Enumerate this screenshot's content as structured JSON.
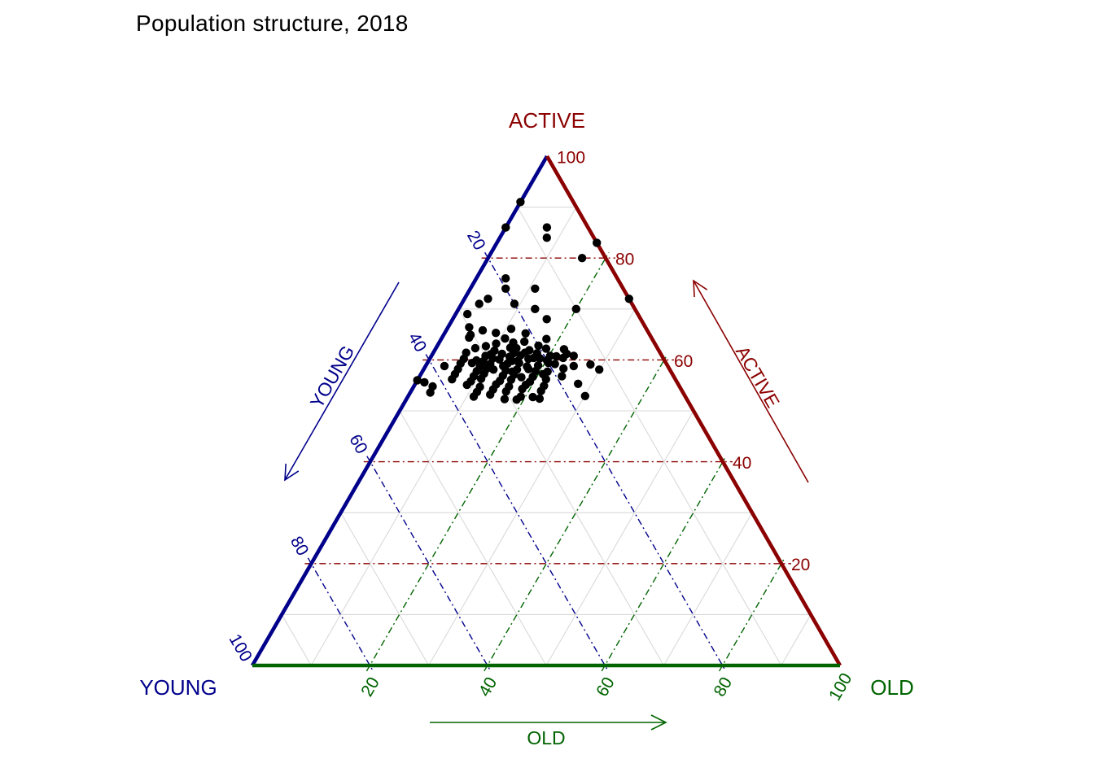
{
  "title": "Population structure, 2018",
  "colors": {
    "young": "#00008B",
    "active": "#8B0000",
    "old": "#006400",
    "points": "#000000",
    "minor_grid": "#D9D9D9",
    "background": "#FFFFFF"
  },
  "axes": {
    "top_label": "ACTIVE",
    "bottom_left_label": "YOUNG",
    "bottom_right_label": "OLD",
    "arrows": {
      "left_label": "YOUNG",
      "right_label": "ACTIVE",
      "bottom_label": "OLD"
    },
    "young_ticks": [
      20,
      40,
      60,
      80,
      100
    ],
    "active_ticks": [
      100,
      80,
      60,
      40,
      20
    ],
    "old_ticks": [
      20,
      40,
      60,
      80,
      100
    ]
  },
  "chart_data": {
    "type": "scatter",
    "subtype": "ternary",
    "title": "Population structure, 2018",
    "components": [
      "YOUNG",
      "ACTIVE",
      "OLD"
    ],
    "axis_range": [
      0,
      100
    ],
    "grid": {
      "major_step": 20,
      "minor_step": 10,
      "major_style": "dash-dot",
      "minor_style": "solid-gray"
    },
    "legend": "none",
    "point_color": "#000000",
    "points": [
      [
        9,
        91,
        0
      ],
      [
        14,
        86,
        0
      ],
      [
        7,
        86,
        7
      ],
      [
        8,
        84,
        8
      ],
      [
        0,
        83,
        17
      ],
      [
        4,
        80,
        16
      ],
      [
        19,
        76,
        5
      ],
      [
        20,
        74,
        6
      ],
      [
        15,
        74,
        11
      ],
      [
        24,
        72,
        4
      ],
      [
        0,
        72,
        28
      ],
      [
        26,
        71,
        3
      ],
      [
        20,
        71,
        9
      ],
      [
        17,
        70,
        13
      ],
      [
        29,
        69,
        2
      ],
      [
        10,
        70,
        20
      ],
      [
        16,
        68,
        16
      ],
      [
        30,
        66.4,
        3.6
      ],
      [
        28,
        65.8,
        6.2
      ],
      [
        26,
        65.3,
        8.7
      ],
      [
        30.5,
        64.9,
        4.6
      ],
      [
        25,
        64.2,
        10.8
      ],
      [
        22,
        63.6,
        14.4
      ],
      [
        27,
        63.2,
        9.8
      ],
      [
        31,
        64.4,
        4.6
      ],
      [
        20,
        62.8,
        17.2
      ],
      [
        24,
        63.4,
        12.6
      ],
      [
        18,
        64.1,
        17.9
      ],
      [
        29,
        62.7,
        8.3
      ],
      [
        21,
        65.2,
        13.8
      ],
      [
        23,
        66.1,
        10.9
      ],
      [
        31,
        62.3,
        6.7
      ],
      [
        28,
        61.8,
        10.2
      ],
      [
        25,
        62.4,
        12.6
      ],
      [
        22,
        61.9,
        16.1
      ],
      [
        19,
        62.2,
        18.8
      ],
      [
        16,
        62.1,
        21.9
      ],
      [
        24,
        62.3,
        13.7
      ],
      [
        33,
        61.4,
        5.6
      ],
      [
        30,
        60.8,
        9.2
      ],
      [
        27,
        61.2,
        11.8
      ],
      [
        24,
        60.9,
        15.1
      ],
      [
        21,
        61.3,
        17.7
      ],
      [
        18,
        60.7,
        21.3
      ],
      [
        16,
        61.2,
        22.8
      ],
      [
        23,
        61.4,
        15.6
      ],
      [
        26,
        60.6,
        13.4
      ],
      [
        29,
        61.1,
        9.9
      ],
      [
        19,
        60.8,
        20.2
      ],
      [
        25,
        61.3,
        13.7
      ],
      [
        34,
        60.2,
        5.8
      ],
      [
        31,
        59.7,
        9.3
      ],
      [
        29,
        60.3,
        10.7
      ],
      [
        26,
        59.8,
        14.2
      ],
      [
        23,
        60.2,
        16.8
      ],
      [
        20,
        59.9,
        20.1
      ],
      [
        17,
        60.4,
        22.6
      ],
      [
        15,
        60.8,
        24.2
      ],
      [
        35,
        59.3,
        5.7
      ],
      [
        32,
        58.7,
        9.3
      ],
      [
        30,
        59.2,
        10.8
      ],
      [
        28,
        58.8,
        13.2
      ],
      [
        25,
        59.4,
        15.6
      ],
      [
        22,
        58.9,
        19.1
      ],
      [
        19,
        59.2,
        21.8
      ],
      [
        16,
        58.8,
        25.2
      ],
      [
        13,
        59.1,
        27.9
      ],
      [
        27,
        59.3,
        13.7
      ],
      [
        24,
        58.7,
        17.3
      ],
      [
        20,
        59.4,
        20.6
      ],
      [
        38,
        58.8,
        3.2
      ],
      [
        36,
        58.2,
        5.8
      ],
      [
        33,
        57.8,
        9.2
      ],
      [
        31,
        58.3,
        10.7
      ],
      [
        28,
        57.9,
        14.1
      ],
      [
        26,
        58.1,
        15.9
      ],
      [
        24,
        58.2,
        17.8
      ],
      [
        21,
        57.7,
        21.3
      ],
      [
        18,
        58.3,
        23.7
      ],
      [
        12,
        58.1,
        29.9
      ],
      [
        23,
        57.8,
        19.2
      ],
      [
        30,
        58.1,
        11.9
      ],
      [
        27,
        57.7,
        15.3
      ],
      [
        37,
        57.2,
        5.8
      ],
      [
        34,
        56.8,
        9.2
      ],
      [
        32,
        57.3,
        10.7
      ],
      [
        29,
        56.9,
        14.1
      ],
      [
        27,
        57.1,
        15.9
      ],
      [
        24,
        56.7,
        19.3
      ],
      [
        22,
        57.2,
        20.8
      ],
      [
        19,
        56.8,
        24.2
      ],
      [
        26,
        56.6,
        17.4
      ],
      [
        21,
        60.3,
        18.7
      ],
      [
        28,
        60.1,
        11.9
      ],
      [
        32,
        59.9,
        8.1
      ],
      [
        33,
        59.4,
        7.6
      ],
      [
        22,
        60.4,
        17.6
      ],
      [
        25,
        59.8,
        15.2
      ],
      [
        44,
        56,
        0
      ],
      [
        43,
        55.6,
        1.4
      ],
      [
        42,
        54.8,
        3.2
      ],
      [
        38,
        56.2,
        5.8
      ],
      [
        35,
        55.8,
        9.2
      ],
      [
        33,
        56.3,
        10.7
      ],
      [
        30,
        55.9,
        14.1
      ],
      [
        28,
        56.1,
        15.9
      ],
      [
        25,
        55.7,
        19.3
      ],
      [
        22,
        56.2,
        21.8
      ],
      [
        17,
        55.3,
        27.7
      ],
      [
        36,
        55.1,
        8.9
      ],
      [
        34,
        54.7,
        11.3
      ],
      [
        31,
        55.2,
        13.8
      ],
      [
        29,
        54.8,
        16.2
      ],
      [
        26,
        55.1,
        18.9
      ],
      [
        23,
        54.9,
        22.1
      ],
      [
        32,
        54.2,
        13.8
      ],
      [
        30,
        53.8,
        16.2
      ],
      [
        27,
        54.3,
        18.7
      ],
      [
        24,
        53.9,
        22.1
      ],
      [
        43,
        53.6,
        3.4
      ],
      [
        31,
        52.3,
        16.7
      ],
      [
        28,
        52.8,
        19.2
      ],
      [
        33,
        53.2,
        13.8
      ],
      [
        26,
        52.7,
        21.3
      ],
      [
        17,
        52.9,
        30.1
      ],
      [
        35,
        53.7,
        11.3
      ],
      [
        29,
        52.2,
        18.8
      ],
      [
        25,
        52.4,
        22.6
      ],
      [
        36,
        52.8,
        11.2
      ]
    ]
  }
}
